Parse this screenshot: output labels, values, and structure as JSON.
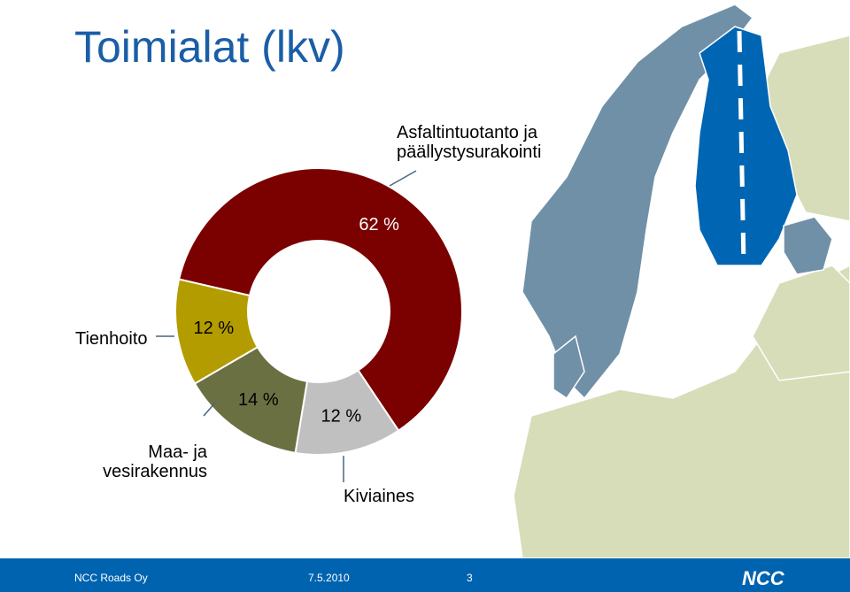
{
  "chart_data": {
    "type": "donut",
    "title": "Toimialat (lkv)",
    "categories": [
      "Asfaltintuotanto ja\npäällystysurakointi",
      "Kiviaines",
      "Maa- ja\nvesirakennus",
      "Tienhoito"
    ],
    "values": [
      62,
      12,
      14,
      12
    ],
    "value_labels": [
      "62 %",
      "12 %",
      "14 %",
      "12 %"
    ],
    "colors": [
      "#7b0000",
      "#c0c0c0",
      "#6b7042",
      "#b39c00"
    ]
  },
  "footer": {
    "company": "NCC Roads Oy",
    "date": "7.5.2010",
    "page": "3",
    "logo": "NCC"
  }
}
